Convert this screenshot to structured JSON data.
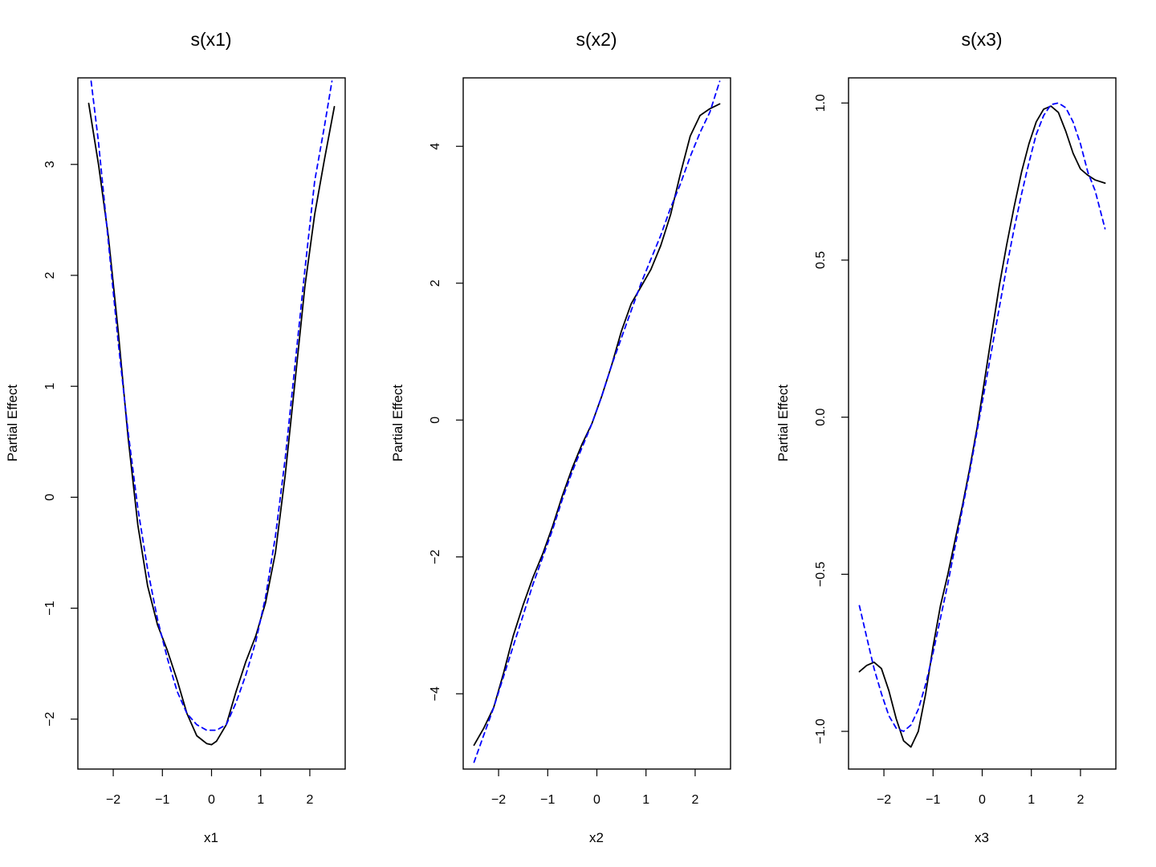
{
  "chart_data": [
    {
      "type": "line",
      "title": "s(x1)",
      "xlabel": "x1",
      "ylabel": "Partial Effect",
      "xlim": [
        -2.72,
        2.72
      ],
      "ylim": [
        -2.45,
        3.78
      ],
      "xticks": [
        -2,
        -1,
        0,
        1,
        2
      ],
      "yticks": [
        -2,
        -1,
        0,
        1,
        2,
        3
      ],
      "xtick_labels": [
        "−2",
        "−1",
        "0",
        "1",
        "2"
      ],
      "ytick_labels": [
        "−2",
        "−1",
        "0",
        "1",
        "2",
        "3"
      ],
      "grid": false,
      "series": [
        {
          "style": "solid",
          "color": "#000000",
          "x": [
            -2.5,
            -2.3,
            -2.1,
            -1.9,
            -1.7,
            -1.5,
            -1.3,
            -1.1,
            -0.9,
            -0.7,
            -0.5,
            -0.3,
            -0.1,
            0,
            0.1,
            0.3,
            0.5,
            0.7,
            0.9,
            1.1,
            1.3,
            1.5,
            1.7,
            1.9,
            2.1,
            2.3,
            2.5
          ],
          "y": [
            3.55,
            3.0,
            2.35,
            1.5,
            0.55,
            -0.25,
            -0.8,
            -1.15,
            -1.38,
            -1.65,
            -1.95,
            -2.15,
            -2.22,
            -2.23,
            -2.2,
            -2.05,
            -1.75,
            -1.48,
            -1.25,
            -0.95,
            -0.5,
            0.2,
            1.05,
            1.9,
            2.55,
            3.05,
            3.52
          ]
        },
        {
          "style": "dashed",
          "color": "#0000ff",
          "x": [
            -2.45,
            -2.3,
            -2.1,
            -1.9,
            -1.7,
            -1.5,
            -1.3,
            -1.1,
            -0.9,
            -0.7,
            -0.5,
            -0.3,
            -0.1,
            0,
            0.1,
            0.3,
            0.5,
            0.7,
            0.9,
            1.1,
            1.3,
            1.5,
            1.7,
            1.9,
            2.1,
            2.3,
            2.45
          ],
          "y": [
            3.75,
            3.2,
            2.3,
            1.4,
            0.6,
            -0.1,
            -0.65,
            -1.1,
            -1.45,
            -1.75,
            -1.95,
            -2.05,
            -2.1,
            -2.1,
            -2.1,
            -2.05,
            -1.85,
            -1.6,
            -1.3,
            -0.9,
            -0.35,
            0.35,
            1.2,
            2.05,
            2.85,
            3.35,
            3.75
          ]
        }
      ]
    },
    {
      "type": "line",
      "title": "s(x2)",
      "xlabel": "x2",
      "ylabel": "Partial Effect",
      "xlim": [
        -2.72,
        2.72
      ],
      "ylim": [
        -5.1,
        5.0
      ],
      "xticks": [
        -2,
        -1,
        0,
        1,
        2
      ],
      "yticks": [
        -4,
        -2,
        0,
        2,
        4
      ],
      "xtick_labels": [
        "−2",
        "−1",
        "0",
        "1",
        "2"
      ],
      "ytick_labels": [
        "−4",
        "−2",
        "0",
        "2",
        "4"
      ],
      "grid": false,
      "series": [
        {
          "style": "solid",
          "color": "#000000",
          "x": [
            -2.5,
            -2.3,
            -2.1,
            -1.9,
            -1.7,
            -1.5,
            -1.3,
            -1.1,
            -0.9,
            -0.7,
            -0.5,
            -0.3,
            -0.1,
            0.1,
            0.3,
            0.5,
            0.7,
            0.9,
            1.1,
            1.3,
            1.5,
            1.7,
            1.9,
            2.1,
            2.3,
            2.5
          ],
          "y": [
            -4.75,
            -4.5,
            -4.2,
            -3.7,
            -3.15,
            -2.7,
            -2.3,
            -1.95,
            -1.55,
            -1.1,
            -0.7,
            -0.35,
            -0.05,
            0.35,
            0.8,
            1.3,
            1.7,
            1.95,
            2.2,
            2.55,
            3.0,
            3.6,
            4.15,
            4.45,
            4.55,
            4.62
          ]
        },
        {
          "style": "dashed",
          "color": "#0000ff",
          "x": [
            -2.5,
            -2.3,
            -2.1,
            -1.9,
            -1.7,
            -1.5,
            -1.3,
            -1.1,
            -0.9,
            -0.7,
            -0.5,
            -0.3,
            -0.1,
            0.1,
            0.3,
            0.5,
            0.7,
            0.9,
            1.1,
            1.3,
            1.5,
            1.7,
            1.9,
            2.1,
            2.3,
            2.5
          ],
          "y": [
            -5.0,
            -4.6,
            -4.2,
            -3.75,
            -3.3,
            -2.85,
            -2.4,
            -2.0,
            -1.6,
            -1.15,
            -0.75,
            -0.4,
            -0.05,
            0.35,
            0.8,
            1.2,
            1.6,
            2.0,
            2.35,
            2.7,
            3.1,
            3.45,
            3.85,
            4.2,
            4.5,
            4.95
          ]
        }
      ]
    },
    {
      "type": "line",
      "title": "s(x3)",
      "xlabel": "x3",
      "ylabel": "Partial Effect",
      "xlim": [
        -2.72,
        2.72
      ],
      "ylim": [
        -1.12,
        1.08
      ],
      "xticks": [
        -2,
        -1,
        0,
        1,
        2
      ],
      "yticks": [
        -1.0,
        -0.5,
        0.0,
        0.5,
        1.0
      ],
      "xtick_labels": [
        "−2",
        "−1",
        "0",
        "1",
        "2"
      ],
      "ytick_labels": [
        "−1.0",
        "−0.5",
        "0.0",
        "0.5",
        "1.0"
      ],
      "grid": false,
      "series": [
        {
          "style": "solid",
          "color": "#000000",
          "x": [
            -2.5,
            -2.35,
            -2.2,
            -2.05,
            -1.9,
            -1.75,
            -1.6,
            -1.45,
            -1.3,
            -1.15,
            -1.0,
            -0.85,
            -0.7,
            -0.55,
            -0.4,
            -0.25,
            -0.1,
            0.05,
            0.2,
            0.35,
            0.5,
            0.65,
            0.8,
            0.95,
            1.1,
            1.25,
            1.4,
            1.55,
            1.7,
            1.85,
            2.0,
            2.15,
            2.3,
            2.5
          ],
          "y": [
            -0.81,
            -0.79,
            -0.78,
            -0.8,
            -0.87,
            -0.96,
            -1.03,
            -1.05,
            -1.0,
            -0.88,
            -0.73,
            -0.6,
            -0.5,
            -0.39,
            -0.28,
            -0.16,
            -0.03,
            0.12,
            0.27,
            0.42,
            0.55,
            0.67,
            0.78,
            0.87,
            0.94,
            0.98,
            0.99,
            0.97,
            0.91,
            0.84,
            0.79,
            0.77,
            0.755,
            0.745
          ]
        },
        {
          "style": "dashed",
          "color": "#0000ff",
          "x": [
            -2.5,
            -2.35,
            -2.2,
            -2.05,
            -1.9,
            -1.75,
            -1.6,
            -1.45,
            -1.3,
            -1.15,
            -1.0,
            -0.85,
            -0.7,
            -0.55,
            -0.4,
            -0.25,
            -0.1,
            0.05,
            0.2,
            0.35,
            0.5,
            0.65,
            0.8,
            0.95,
            1.1,
            1.25,
            1.4,
            1.55,
            1.7,
            1.85,
            2.0,
            2.15,
            2.3,
            2.5
          ],
          "y": [
            -0.6,
            -0.7,
            -0.8,
            -0.88,
            -0.95,
            -0.99,
            -1.0,
            -0.98,
            -0.93,
            -0.85,
            -0.75,
            -0.64,
            -0.53,
            -0.41,
            -0.29,
            -0.17,
            -0.04,
            0.09,
            0.22,
            0.35,
            0.48,
            0.6,
            0.71,
            0.81,
            0.9,
            0.96,
            0.995,
            1.0,
            0.985,
            0.94,
            0.87,
            0.78,
            0.72,
            0.6
          ]
        }
      ]
    }
  ]
}
